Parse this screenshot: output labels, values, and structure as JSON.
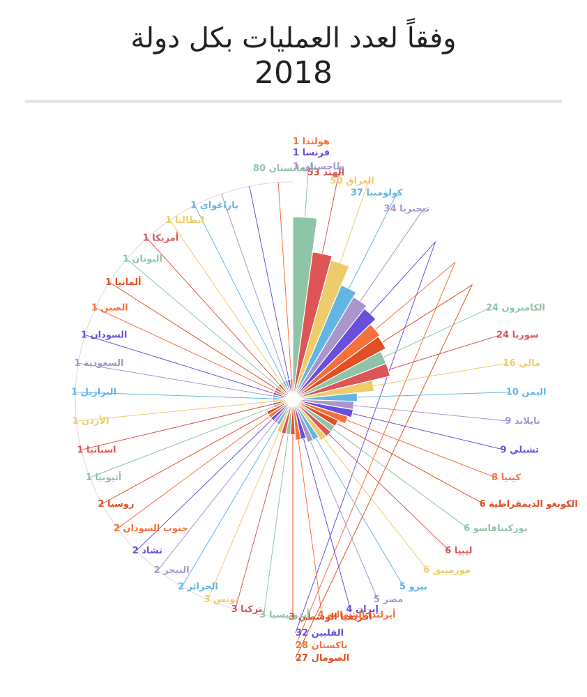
{
  "page": {
    "title_line1": "وفقاً لعدد العمليات بكل دولة",
    "title_line2": "2018"
  },
  "chart_data": {
    "type": "pie",
    "subtype": "polar-area",
    "title": "وفقاً لعدد العمليات بكل دولة 2018",
    "rmax": 80,
    "slices": [
      {
        "label": "أفغانستان",
        "value": 80,
        "color": "#8fc4a8"
      },
      {
        "label": "الهند",
        "value": 53,
        "color": "#dd5556"
      },
      {
        "label": "العراق",
        "value": 50,
        "color": "#eecb6b"
      },
      {
        "label": "كولومبيا",
        "value": 37,
        "color": "#63b6e3"
      },
      {
        "label": "نيجيريا",
        "value": 34,
        "color": "#a896cc"
      },
      {
        "label": "الفلبين",
        "value": 32,
        "color": "#6a4fdb"
      },
      {
        "label": "باكستان",
        "value": 28,
        "color": "#f5703a"
      },
      {
        "label": "الصومال",
        "value": 27,
        "color": "#e14f24"
      },
      {
        "label": "الكاميرون",
        "value": 24,
        "color": "#8fc4a8"
      },
      {
        "label": "سوريا",
        "value": 24,
        "color": "#dd5556"
      },
      {
        "label": "مالي",
        "value": 16,
        "color": "#eecb6b"
      },
      {
        "label": "اليمن",
        "value": 10,
        "color": "#63b6e3"
      },
      {
        "label": "تايلاند",
        "value": 9,
        "color": "#a896cc"
      },
      {
        "label": "تشيلي",
        "value": 9,
        "color": "#6a4fdb"
      },
      {
        "label": "كينيا",
        "value": 8,
        "color": "#f5703a"
      },
      {
        "label": "الكونغو الديمقراطية",
        "value": 6,
        "color": "#e14f24"
      },
      {
        "label": "بوركينافاسو",
        "value": 6,
        "color": "#8fc4a8"
      },
      {
        "label": "ليبيا",
        "value": 6,
        "color": "#dd5556"
      },
      {
        "label": "موزمبيق",
        "value": 6,
        "color": "#eecb6b"
      },
      {
        "label": "بيرو",
        "value": 5,
        "color": "#63b6e3"
      },
      {
        "label": "مصر",
        "value": 5,
        "color": "#a896cc"
      },
      {
        "label": "إيران",
        "value": 4,
        "color": "#6a4fdb"
      },
      {
        "label": "أيرلندا الشمالية",
        "value": 4,
        "color": "#f5703a"
      },
      {
        "label": "أفريقيا الوسطي",
        "value": 3,
        "color": "#e14f24"
      },
      {
        "label": "أندونيسيا",
        "value": 3,
        "color": "#8fc4a8"
      },
      {
        "label": "تركيا",
        "value": 3,
        "color": "#dd5556"
      },
      {
        "label": "تونس",
        "value": 3,
        "color": "#eecb6b"
      },
      {
        "label": "الجزائر",
        "value": 2,
        "color": "#63b6e3"
      },
      {
        "label": "النيجر",
        "value": 2,
        "color": "#a896cc"
      },
      {
        "label": "تشاد",
        "value": 2,
        "color": "#6a4fdb"
      },
      {
        "label": "جنوب السودان",
        "value": 2,
        "color": "#f5703a"
      },
      {
        "label": "روسيا",
        "value": 2,
        "color": "#e14f24"
      },
      {
        "label": "أثيوبيا",
        "value": 1,
        "color": "#8fc4a8"
      },
      {
        "label": "اسبانيا",
        "value": 1,
        "color": "#dd5556"
      },
      {
        "label": "الأردن",
        "value": 1,
        "color": "#eecb6b"
      },
      {
        "label": "البرازيل",
        "value": 1,
        "color": "#63b6e3"
      },
      {
        "label": "السعودية",
        "value": 1,
        "color": "#a896cc"
      },
      {
        "label": "السودان",
        "value": 1,
        "color": "#6a4fdb"
      },
      {
        "label": "الصين",
        "value": 1,
        "color": "#f5703a"
      },
      {
        "label": "ألمانيا",
        "value": 1,
        "color": "#e14f24"
      },
      {
        "label": "اليونان",
        "value": 1,
        "color": "#8fc4a8"
      },
      {
        "label": "أمريكا",
        "value": 1,
        "color": "#dd5556"
      },
      {
        "label": "ايطاليا",
        "value": 1,
        "color": "#eecb6b"
      },
      {
        "label": "باراغواي",
        "value": 1,
        "color": "#63b6e3"
      },
      {
        "label": "طاجستان",
        "value": 1,
        "color": "#a896cc"
      },
      {
        "label": "فرنسا",
        "value": 1,
        "color": "#6a4fdb"
      },
      {
        "label": "هولندا",
        "value": 1,
        "color": "#f5703a"
      }
    ]
  }
}
